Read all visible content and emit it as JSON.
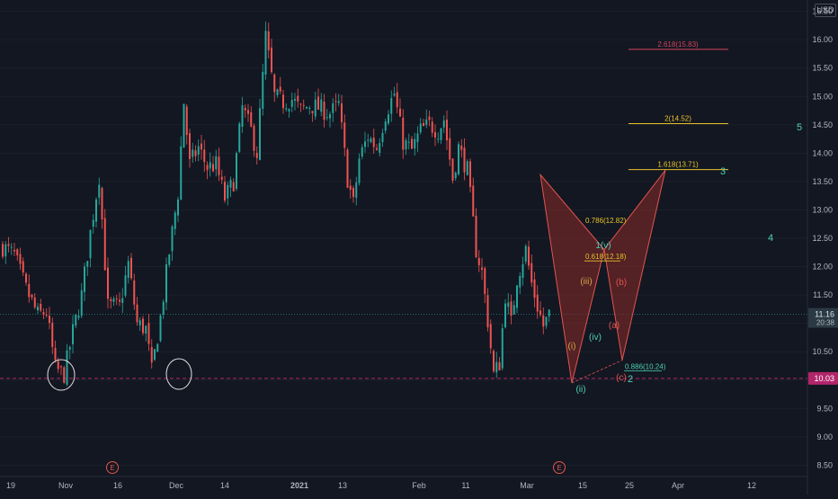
{
  "currency_button": "USD",
  "price_tag_last": {
    "value": "11.16",
    "countdown": "20:38",
    "color": "#2a3a44"
  },
  "price_tag_level": {
    "value": "10.03",
    "color": "#b2256b"
  },
  "colors": {
    "background": "#131722",
    "candle_up": "#26a69a",
    "candle_down": "#ef5350",
    "pattern_fill": "#8b2a28",
    "pattern_stroke": "#e0554f",
    "fib_gold": "#e6c229",
    "fib_red": "#d1445a",
    "wave_cyan": "#4dd0b5",
    "wave_orange": "#d4a64a",
    "wave_red": "#e0554f",
    "circle": "#e0e0e0"
  },
  "chart_data": {
    "type": "candlestick",
    "title": "",
    "xlabel": "",
    "ylabel": "",
    "ylim": [
      8.3,
      16.7
    ],
    "y_ticks": [
      "8.50",
      "9.00",
      "9.50",
      "10.00",
      "10.50",
      "11.00",
      "11.50",
      "12.00",
      "12.50",
      "13.00",
      "13.50",
      "14.00",
      "14.50",
      "15.00",
      "15.50",
      "16.00",
      "16.50"
    ],
    "x_ticks": [
      "19",
      "Nov",
      "16",
      "Dec",
      "14",
      "2021",
      "13",
      "Feb",
      "11",
      "Mar",
      "15",
      "25",
      "Apr",
      "12"
    ],
    "price_path": [
      {
        "t": 0,
        "p": 12.35
      },
      {
        "t": 4,
        "p": 12.2
      },
      {
        "t": 8,
        "p": 11.6
      },
      {
        "t": 12,
        "p": 11.15
      },
      {
        "t": 15,
        "p": 11.2
      },
      {
        "t": 18,
        "p": 10.2
      },
      {
        "t": 21,
        "p": 10.1
      },
      {
        "t": 24,
        "p": 10.85
      },
      {
        "t": 27,
        "p": 11.5
      },
      {
        "t": 30,
        "p": 12.6
      },
      {
        "t": 33,
        "p": 13.6
      },
      {
        "t": 36,
        "p": 11.3
      },
      {
        "t": 40,
        "p": 11.3
      },
      {
        "t": 43,
        "p": 12.05
      },
      {
        "t": 46,
        "p": 11.0
      },
      {
        "t": 49,
        "p": 10.9
      },
      {
        "t": 51,
        "p": 10.15
      },
      {
        "t": 54,
        "p": 11.1
      },
      {
        "t": 57,
        "p": 12.25
      },
      {
        "t": 60,
        "p": 13.3
      },
      {
        "t": 62,
        "p": 14.9
      },
      {
        "t": 64,
        "p": 13.8
      },
      {
        "t": 67,
        "p": 14.1
      },
      {
        "t": 70,
        "p": 13.75
      },
      {
        "t": 73,
        "p": 13.8
      },
      {
        "t": 76,
        "p": 13.2
      },
      {
        "t": 79,
        "p": 13.5
      },
      {
        "t": 82,
        "p": 14.8
      },
      {
        "t": 85,
        "p": 14.4
      },
      {
        "t": 87,
        "p": 14.0
      },
      {
        "t": 90,
        "p": 16.05
      },
      {
        "t": 93,
        "p": 15.0
      },
      {
        "t": 96,
        "p": 14.9
      },
      {
        "t": 99,
        "p": 14.95
      },
      {
        "t": 102,
        "p": 14.75
      },
      {
        "t": 105,
        "p": 14.85
      },
      {
        "t": 108,
        "p": 14.8
      },
      {
        "t": 112,
        "p": 14.7
      },
      {
        "t": 115,
        "p": 14.85
      },
      {
        "t": 118,
        "p": 13.55
      },
      {
        "t": 120,
        "p": 13.1
      },
      {
        "t": 122,
        "p": 13.9
      },
      {
        "t": 125,
        "p": 14.3
      },
      {
        "t": 128,
        "p": 14.1
      },
      {
        "t": 131,
        "p": 14.7
      },
      {
        "t": 134,
        "p": 15.05
      },
      {
        "t": 137,
        "p": 14.2
      },
      {
        "t": 140,
        "p": 14.05
      },
      {
        "t": 143,
        "p": 14.4
      },
      {
        "t": 146,
        "p": 14.5
      },
      {
        "t": 149,
        "p": 14.4
      },
      {
        "t": 151,
        "p": 14.6
      },
      {
        "t": 154,
        "p": 13.55
      },
      {
        "t": 156,
        "p": 14.1
      },
      {
        "t": 159,
        "p": 13.7
      },
      {
        "t": 162,
        "p": 12.3
      },
      {
        "t": 164,
        "p": 11.9
      },
      {
        "t": 166,
        "p": 11.05
      },
      {
        "t": 168,
        "p": 10.1
      },
      {
        "t": 170,
        "p": 10.3
      },
      {
        "t": 172,
        "p": 11.5
      },
      {
        "t": 174,
        "p": 11.0
      },
      {
        "t": 176,
        "p": 11.8
      },
      {
        "t": 179,
        "p": 12.3
      },
      {
        "t": 181,
        "p": 11.7
      },
      {
        "t": 183,
        "p": 11.3
      },
      {
        "t": 185,
        "p": 10.95
      },
      {
        "t": 187,
        "p": 11.15
      }
    ],
    "reference_lines": [
      {
        "value": 11.16,
        "style": "dotted",
        "color": "#26a69a"
      },
      {
        "value": 10.03,
        "style": "dashed",
        "color": "#b2256b"
      }
    ],
    "fib_levels": [
      {
        "label": "2.618(15.83)",
        "value": 15.83,
        "color": "#d1445a"
      },
      {
        "label": "2(14.52)",
        "value": 14.52,
        "color": "#e6c229"
      },
      {
        "label": "1.618(13.71)",
        "value": 13.71,
        "color": "#e6c229"
      }
    ],
    "pattern_labels": [
      {
        "label": "0.786(12.82)",
        "value": 12.82
      },
      {
        "label": "0.618(12.18)",
        "value": 12.18
      },
      {
        "label": "0.886(10.24)",
        "value": 10.24
      }
    ],
    "wave_labels": [
      {
        "label": "(i)",
        "color": "orange"
      },
      {
        "label": "(ii)",
        "color": "cyan"
      },
      {
        "label": "(iii)",
        "color": "orange"
      },
      {
        "label": "(iv)",
        "color": "cyan"
      },
      {
        "label": "1(v)",
        "color": "cyan"
      },
      {
        "label": "(a)",
        "color": "red"
      },
      {
        "label": "(b)",
        "color": "red"
      },
      {
        "label": "(c)",
        "color": "red"
      },
      {
        "label": "2",
        "color": "cyan"
      },
      {
        "label": "3",
        "color": "cyan"
      },
      {
        "label": "4",
        "color": "cyan"
      },
      {
        "label": "5",
        "color": "cyan"
      }
    ],
    "event_markers": [
      "E",
      "E"
    ]
  }
}
